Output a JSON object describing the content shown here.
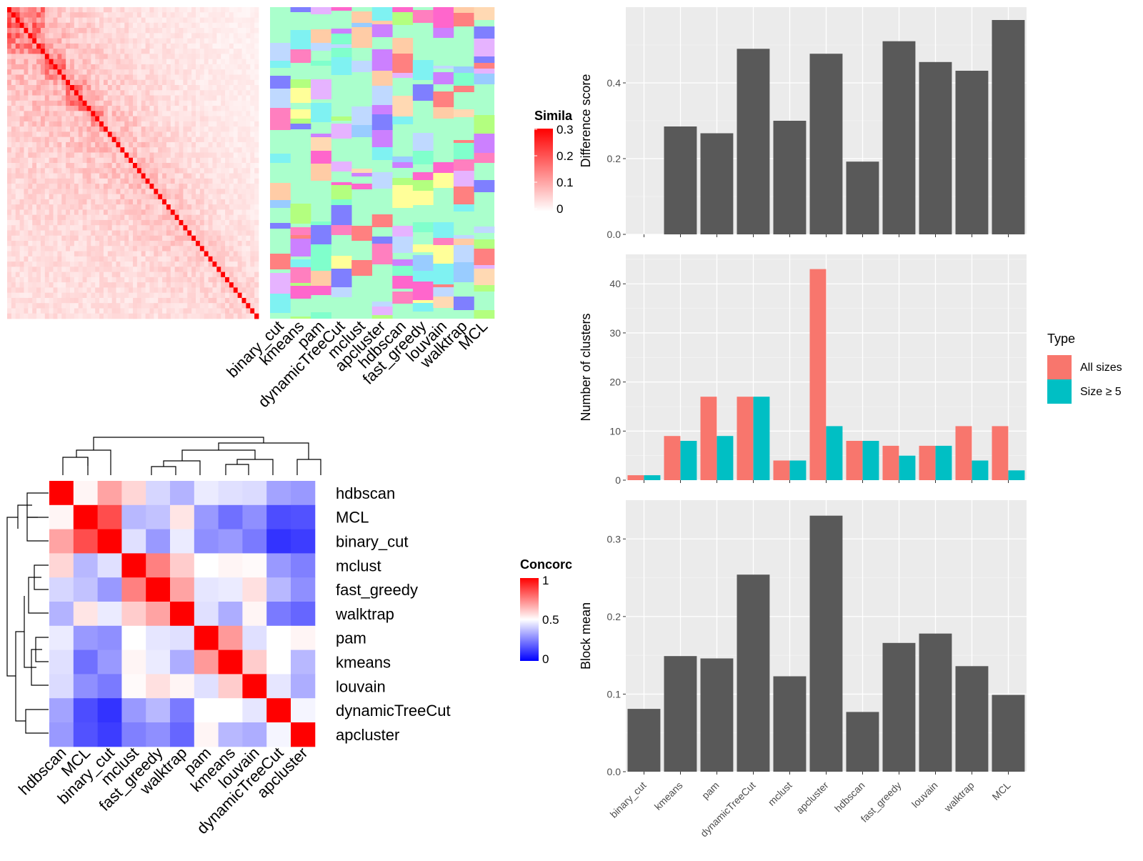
{
  "methods": [
    "binary_cut",
    "kmeans",
    "pam",
    "dynamicTreeCut",
    "mclust",
    "apcluster",
    "hdbscan",
    "fast_greedy",
    "louvain",
    "walktrap",
    "MCL"
  ],
  "similarity_legend": {
    "title": "Simila",
    "ticks": [
      "0.3",
      "0.2",
      "0.1",
      "0"
    ],
    "colors": [
      "#ffffff",
      "#ff0000"
    ]
  },
  "concordance_legend": {
    "title": "Concorc",
    "ticks": [
      "1",
      "0.5",
      "0"
    ],
    "colors": [
      "#0000ff",
      "#ffffff",
      "#ff0000"
    ]
  },
  "concordance_order": [
    "hdbscan",
    "MCL",
    "binary_cut",
    "mclust",
    "fast_greedy",
    "walktrap",
    "pam",
    "kmeans",
    "louvain",
    "dynamicTreeCut",
    "apcluster"
  ],
  "chart_data": [
    {
      "type": "heatmap",
      "title": "",
      "rows": [
        "hdbscan",
        "MCL",
        "binary_cut",
        "mclust",
        "fast_greedy",
        "walktrap",
        "pam",
        "kmeans",
        "louvain",
        "dynamicTreeCut",
        "apcluster"
      ],
      "columns": [
        "hdbscan",
        "MCL",
        "binary_cut",
        "mclust",
        "fast_greedy",
        "walktrap",
        "pam",
        "kmeans",
        "louvain",
        "dynamicTreeCut",
        "apcluster"
      ],
      "values": [
        [
          1.0,
          0.52,
          0.68,
          0.58,
          0.42,
          0.35,
          0.46,
          0.44,
          0.43,
          0.32,
          0.3
        ],
        [
          0.52,
          1.0,
          0.85,
          0.36,
          0.38,
          0.55,
          0.3,
          0.22,
          0.28,
          0.15,
          0.16
        ],
        [
          0.68,
          0.85,
          1.0,
          0.44,
          0.3,
          0.46,
          0.28,
          0.3,
          0.24,
          0.1,
          0.12
        ],
        [
          0.58,
          0.36,
          0.44,
          1.0,
          0.75,
          0.6,
          0.5,
          0.52,
          0.51,
          0.3,
          0.25
        ],
        [
          0.42,
          0.38,
          0.3,
          0.75,
          1.0,
          0.68,
          0.45,
          0.46,
          0.56,
          0.36,
          0.28
        ],
        [
          0.35,
          0.55,
          0.46,
          0.6,
          0.68,
          1.0,
          0.44,
          0.34,
          0.52,
          0.24,
          0.2
        ],
        [
          0.46,
          0.3,
          0.28,
          0.5,
          0.45,
          0.44,
          1.0,
          0.7,
          0.44,
          0.5,
          0.52
        ],
        [
          0.44,
          0.22,
          0.3,
          0.52,
          0.46,
          0.34,
          0.7,
          1.0,
          0.6,
          0.5,
          0.36
        ],
        [
          0.43,
          0.28,
          0.24,
          0.51,
          0.56,
          0.52,
          0.44,
          0.6,
          1.0,
          0.45,
          0.34
        ],
        [
          0.32,
          0.15,
          0.1,
          0.3,
          0.36,
          0.24,
          0.5,
          0.5,
          0.45,
          1.0,
          0.48
        ],
        [
          0.3,
          0.16,
          0.12,
          0.25,
          0.28,
          0.2,
          0.52,
          0.36,
          0.34,
          0.48,
          1.0
        ]
      ]
    },
    {
      "type": "bar",
      "categories": [
        "binary_cut",
        "kmeans",
        "pam",
        "dynamicTreeCut",
        "mclust",
        "apcluster",
        "hdbscan",
        "fast_greedy",
        "louvain",
        "walktrap",
        "MCL"
      ],
      "values": [
        0.0,
        0.285,
        0.267,
        0.49,
        0.3,
        0.477,
        0.192,
        0.51,
        0.455,
        0.432,
        0.566
      ],
      "ylabel": "Difference score",
      "xlabel": "",
      "ylim": [
        0,
        0.6
      ],
      "yticks": [
        "0.0",
        "0.2",
        "0.4"
      ],
      "color": "#595959"
    },
    {
      "type": "bar",
      "categories": [
        "binary_cut",
        "kmeans",
        "pam",
        "dynamicTreeCut",
        "mclust",
        "apcluster",
        "hdbscan",
        "fast_greedy",
        "louvain",
        "walktrap",
        "MCL"
      ],
      "series": [
        {
          "name": "All sizes",
          "values": [
            1,
            9,
            17,
            17,
            4,
            43,
            8,
            7,
            7,
            11,
            11
          ],
          "color": "#f8766d"
        },
        {
          "name": "Size ≥ 5",
          "values": [
            1,
            8,
            9,
            17,
            4,
            11,
            8,
            5,
            7,
            4,
            2
          ],
          "color": "#00bfc4"
        }
      ],
      "ylabel": "Number of clusters",
      "xlabel": "",
      "ylim": [
        0,
        46
      ],
      "yticks": [
        "0",
        "10",
        "20",
        "30",
        "40"
      ],
      "legend_title": "Type",
      "legend": "right"
    },
    {
      "type": "bar",
      "categories": [
        "binary_cut",
        "kmeans",
        "pam",
        "dynamicTreeCut",
        "mclust",
        "apcluster",
        "hdbscan",
        "fast_greedy",
        "louvain",
        "walktrap",
        "MCL"
      ],
      "values": [
        0.081,
        0.149,
        0.146,
        0.254,
        0.123,
        0.33,
        0.077,
        0.166,
        0.178,
        0.136,
        0.099
      ],
      "ylabel": "Block mean",
      "xlabel": "",
      "ylim": [
        0,
        0.35
      ],
      "yticks": [
        "0.0",
        "0.1",
        "0.2",
        "0.3"
      ],
      "color": "#595959"
    }
  ]
}
